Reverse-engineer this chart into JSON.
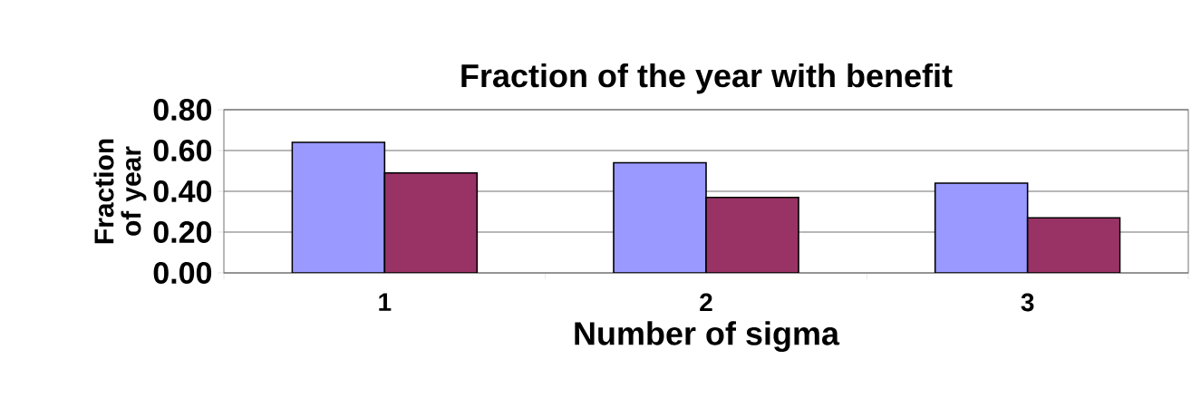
{
  "chart_data": {
    "type": "bar",
    "title": "Fraction of the year with benefit",
    "xlabel": "Number of sigma",
    "ylabel": "Fraction of year",
    "categories": [
      "1",
      "2",
      "3"
    ],
    "series": [
      {
        "color": "#9999ff",
        "values": [
          0.64,
          0.54,
          0.44
        ]
      },
      {
        "color": "#993366",
        "values": [
          0.49,
          0.37,
          0.27
        ]
      }
    ],
    "ylim": [
      0,
      0.8
    ],
    "yticks": [
      {
        "value": 0,
        "label": "0.00"
      },
      {
        "value": 0.2,
        "label": "0.20"
      },
      {
        "value": 0.4,
        "label": "0.40"
      },
      {
        "value": 0.6,
        "label": "0.60"
      },
      {
        "value": 0.8,
        "label": "0.80"
      }
    ],
    "grid": "y"
  }
}
